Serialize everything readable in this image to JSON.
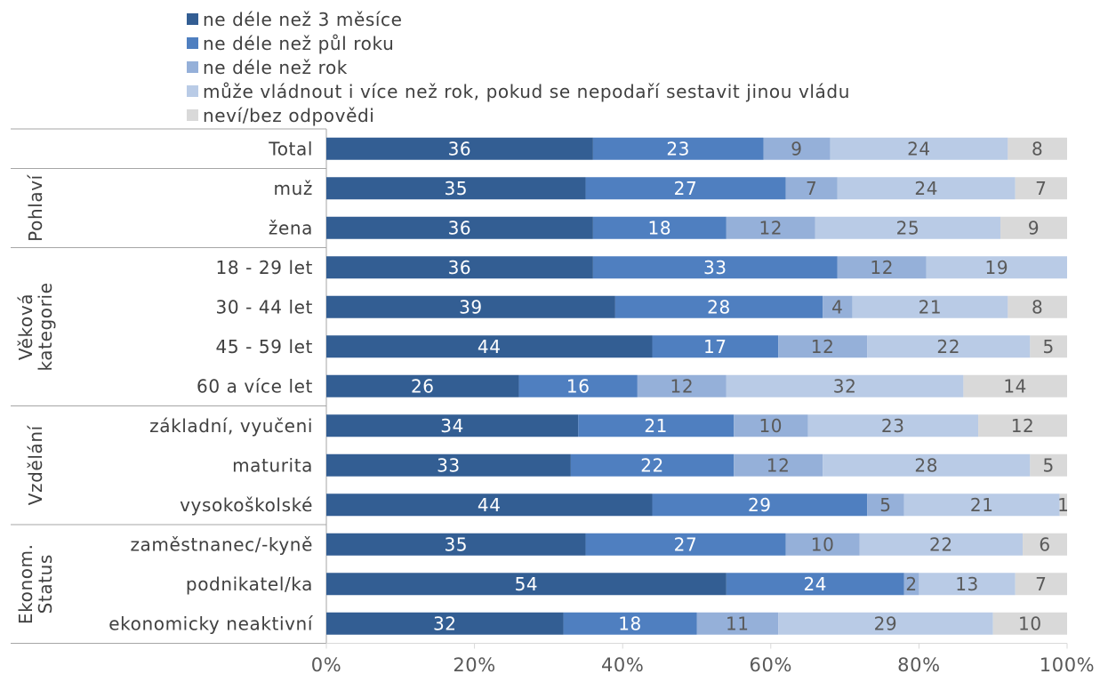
{
  "chart_data": {
    "type": "bar",
    "orientation": "horizontal",
    "stacked": true,
    "percent": true,
    "title": "",
    "xlabel": "",
    "ylabel": "",
    "xlim": [
      0,
      100
    ],
    "x_ticks": [
      "0%",
      "20%",
      "40%",
      "60%",
      "80%",
      "100%"
    ],
    "legend_position": "top",
    "groups": [
      {
        "label": "",
        "rows": 1
      },
      {
        "label": "Pohlaví",
        "rows": 2
      },
      {
        "label": "Věková kategorie",
        "label_lines": [
          "Věková",
          "kategorie"
        ],
        "rows": 4
      },
      {
        "label": "Vzdělání",
        "rows": 3
      },
      {
        "label": "Ekonom. Status",
        "label_lines": [
          "Ekonom.",
          "Status"
        ],
        "rows": 3
      }
    ],
    "categories": [
      "Total",
      "muž",
      "žena",
      "18 - 29 let",
      "30 - 44 let",
      "45 - 59 let",
      "60 a více let",
      "základní, vyučeni",
      "maturita",
      "vysokoškolské",
      "zaměstnanec/-kyně",
      "podnikatel/ka",
      "ekonomicky neaktivní"
    ],
    "series": [
      {
        "name": "ne déle než 3 měsíce",
        "color": "#335e93",
        "label_color": "#ffffff",
        "values": [
          36,
          35,
          36,
          36,
          39,
          44,
          26,
          34,
          33,
          44,
          35,
          54,
          32
        ]
      },
      {
        "name": "ne déle než půl roku",
        "color": "#4f7fc0",
        "label_color": "#ffffff",
        "values": [
          23,
          27,
          18,
          33,
          28,
          17,
          16,
          21,
          22,
          29,
          27,
          24,
          18
        ]
      },
      {
        "name": "ne déle než rok",
        "color": "#95b0d9",
        "label_color": "#595959",
        "values": [
          9,
          7,
          12,
          12,
          4,
          12,
          12,
          10,
          12,
          5,
          10,
          2,
          11
        ]
      },
      {
        "name": "může vládnout i více než rok, pokud se nepodaří sestavit jinou vládu",
        "color": "#b9cbe6",
        "label_color": "#595959",
        "values": [
          24,
          24,
          25,
          19,
          21,
          22,
          32,
          23,
          28,
          21,
          22,
          13,
          29
        ]
      },
      {
        "name": "neví/bez odpovědi",
        "color": "#d9d9d9",
        "label_color": "#595959",
        "values": [
          8,
          7,
          9,
          null,
          8,
          5,
          14,
          12,
          5,
          1,
          6,
          7,
          10
        ]
      }
    ]
  }
}
